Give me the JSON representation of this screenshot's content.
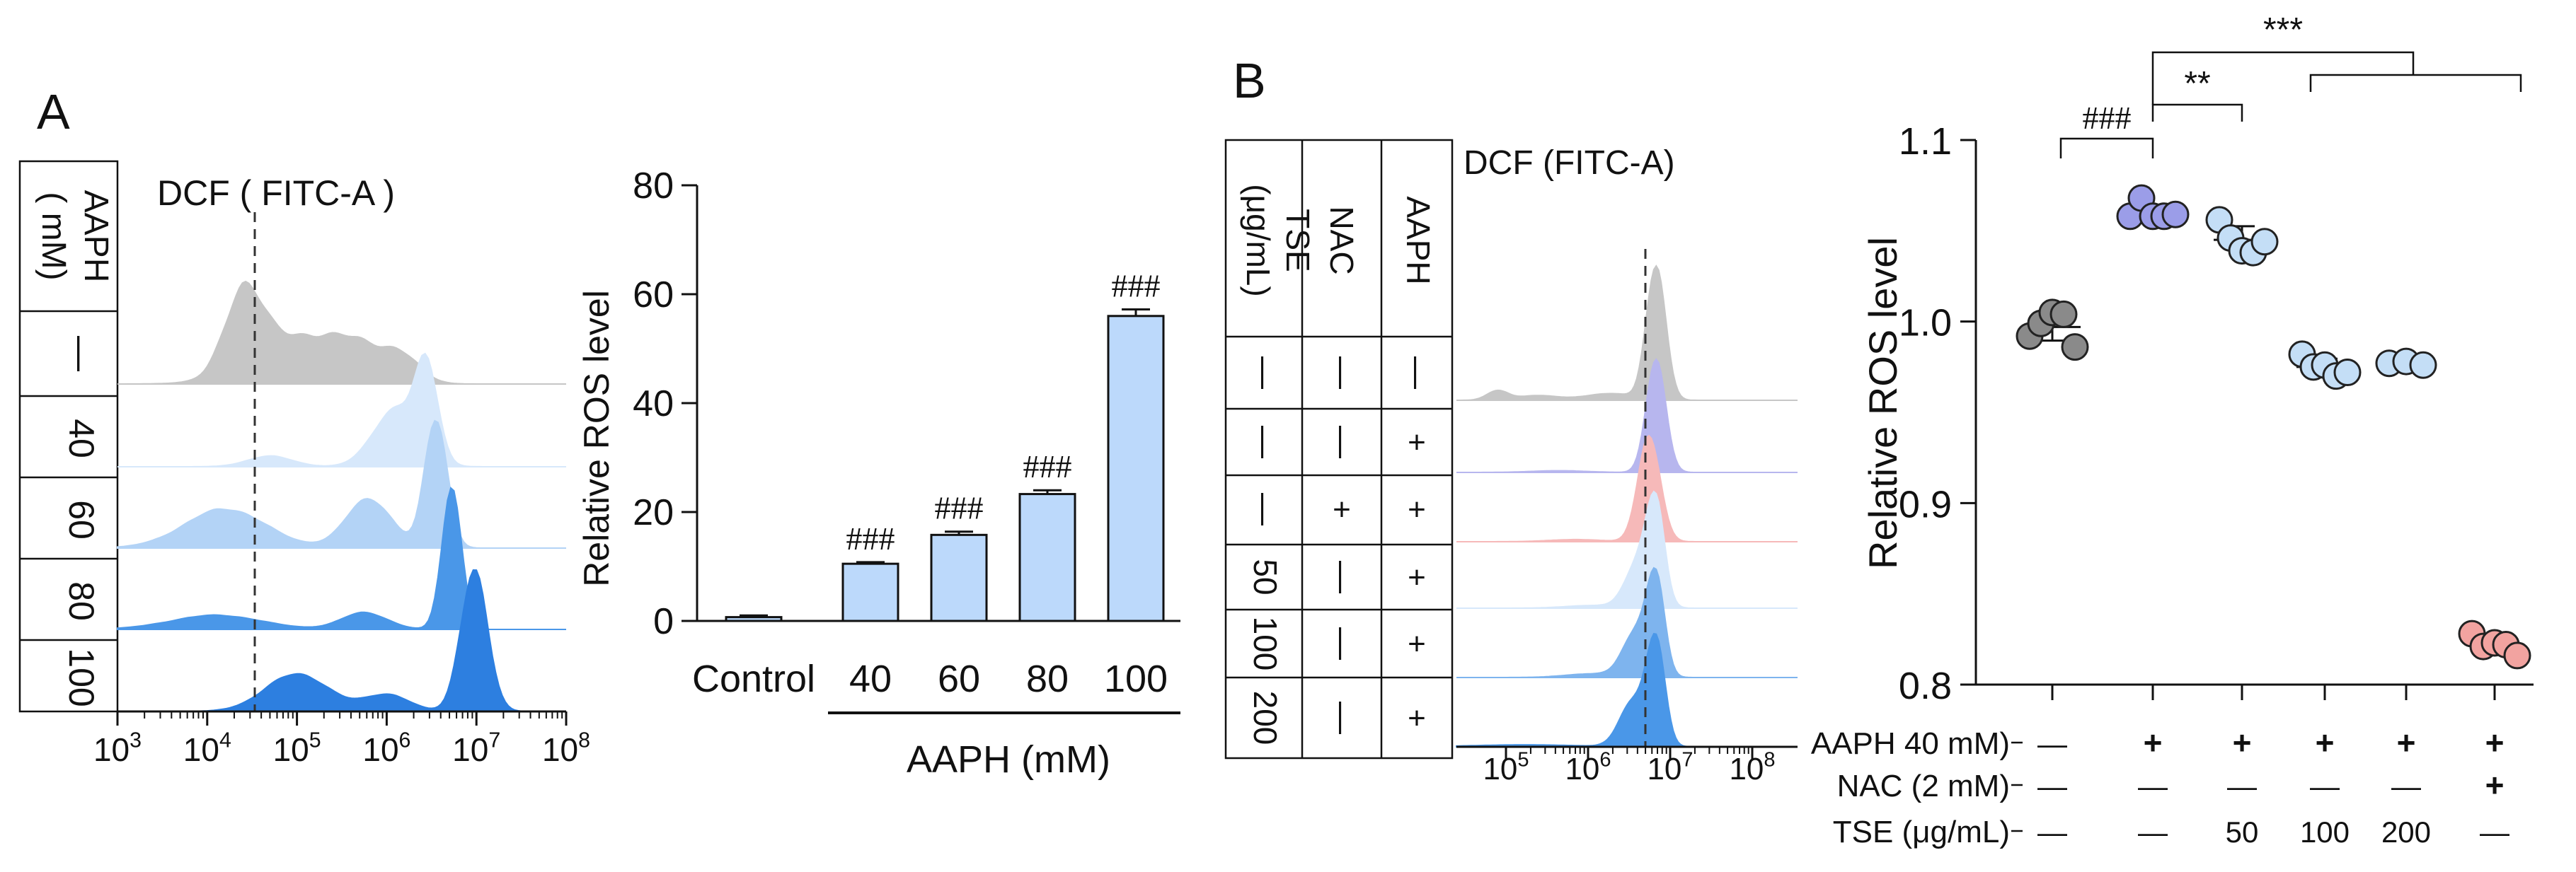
{
  "panels": {
    "A_label": "A",
    "B_label": "B"
  },
  "colors": {
    "gray": "#c6c6c6",
    "light_blue_1": "#d7e8fb",
    "light_blue_2": "#b3d3f6",
    "mid_blue": "#7eb4ee",
    "blue": "#4a97e8",
    "deep_blue": "#2d7fe0",
    "purple": "#b7b6ee",
    "pink": "#f6b9b9",
    "bar_fill": "#bcd9fb",
    "gray_dot": "#8a8a8a",
    "purple_dot": "#9b9de8",
    "light_blue_dot": "#c4def6",
    "salmon_dot": "#f2a3a0"
  },
  "histA": {
    "title": "DCF ( FITC-A )",
    "table_header": [
      "AAPH",
      "( mM)"
    ],
    "row_labels": [
      "—",
      "40",
      "60",
      "80",
      "100"
    ],
    "x_ticks": [
      {
        "base": "10",
        "exp": "3"
      },
      {
        "base": "10",
        "exp": "4"
      },
      {
        "base": "10",
        "exp": "5"
      },
      {
        "base": "10",
        "exp": "6"
      },
      {
        "base": "10",
        "exp": "7"
      },
      {
        "base": "10",
        "exp": "8"
      }
    ]
  },
  "histB": {
    "title": "DCF (FITC-A)",
    "table_header_TSE": [
      "TSE",
      "(μg/mL)"
    ],
    "table_header_NAC": "NAC",
    "table_header_AAPH": "AAPH",
    "rows": [
      {
        "tse": "—",
        "nac": "—",
        "aaph": "—"
      },
      {
        "tse": "—",
        "nac": "—",
        "aaph": "+"
      },
      {
        "tse": "—",
        "nac": "+",
        "aaph": "+"
      },
      {
        "tse": "50",
        "nac": "—",
        "aaph": "+"
      },
      {
        "tse": "100",
        "nac": "—",
        "aaph": "+"
      },
      {
        "tse": "200",
        "nac": "—",
        "aaph": "+"
      }
    ],
    "x_ticks": [
      {
        "base": "10",
        "exp": "5"
      },
      {
        "base": "10",
        "exp": "6"
      },
      {
        "base": "10",
        "exp": "7"
      },
      {
        "base": "10",
        "exp": "8"
      }
    ]
  },
  "chart_data": [
    {
      "type": "bar",
      "title": "",
      "ylabel": "Relative ROS level",
      "xlabel": "AAPH (mM)",
      "ylim": [
        0,
        80
      ],
      "yticks": [
        "0",
        "20",
        "40",
        "60",
        "80"
      ],
      "categories": [
        "Control",
        "40",
        "60",
        "80",
        "100"
      ],
      "values": [
        0.7,
        10.5,
        15.8,
        23.3,
        56.0
      ],
      "errors": [
        0.3,
        0.3,
        0.6,
        0.7,
        1.2
      ],
      "annotations": [
        "",
        "###",
        "###",
        "###",
        "###"
      ]
    },
    {
      "type": "scatter",
      "title": "",
      "ylabel": "Relative ROS level",
      "ylim": [
        0.8,
        1.1
      ],
      "yticks": [
        "0.8",
        "0.9",
        "1.0",
        "1.1"
      ],
      "row_labels": [
        "AAPH 40 mM)",
        "NAC (2 mM)",
        "TSE (μg/mL)"
      ],
      "condition_rows": [
        [
          "—",
          "+",
          "+",
          "+",
          "+",
          "+"
        ],
        [
          "—",
          "—",
          "—",
          "—",
          "—",
          "+"
        ],
        [
          "—",
          "—",
          "50",
          "100",
          "200",
          "—"
        ]
      ],
      "groups": [
        {
          "values": [
            0.992,
            0.999,
            1.005,
            1.004,
            0.986
          ],
          "mean": 0.997,
          "sd": 0.0075
        },
        {
          "values": [
            1.058,
            1.068,
            1.058,
            1.058,
            1.059
          ],
          "mean": 1.06,
          "sd": 0.004
        },
        {
          "values": [
            1.056,
            1.046,
            1.039,
            1.038,
            1.044
          ],
          "mean": 1.045,
          "sd": 0.0075
        },
        {
          "values": [
            0.982,
            0.975,
            0.976,
            0.97,
            0.972
          ],
          "mean": 0.975,
          "sd": 0.0045
        },
        {
          "values": [
            0.977,
            0.978,
            0.976
          ],
          "mean": 0.977,
          "sd": 0.001
        },
        {
          "values": [
            0.828,
            0.821,
            0.823,
            0.822,
            0.816
          ],
          "mean": 0.822,
          "sd": 0.0045
        }
      ],
      "significance": [
        {
          "label": "###",
          "from_group": 0,
          "to_group": 1
        },
        {
          "label": "**",
          "from_group": 1,
          "to_group": 2
        },
        {
          "label": "***",
          "from_group": 1,
          "to_groups": [
            3,
            5
          ]
        }
      ]
    }
  ]
}
